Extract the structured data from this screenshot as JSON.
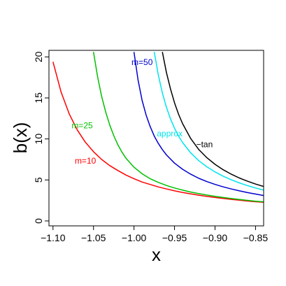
{
  "chart_data": {
    "type": "line",
    "title": "",
    "xlabel": "x",
    "ylabel": "b(x)",
    "xlim": [
      -1.105,
      -0.84
    ],
    "ylim": [
      -0.6,
      20.8
    ],
    "grid": false,
    "legend": "none",
    "x_ticks": [
      -1.1,
      -1.05,
      -1.0,
      -0.95,
      -0.9,
      -0.85
    ],
    "x_tick_labels": [
      "−1.10",
      "−1.05",
      "−1.00",
      "−0.95",
      "−0.90",
      "−0.85"
    ],
    "y_ticks": [
      0,
      5,
      10,
      15,
      20
    ],
    "y_tick_labels": [
      "0",
      "5",
      "10",
      "15",
      "20"
    ],
    "series": [
      {
        "name": "m=10",
        "color": "#ff0000",
        "x": [
          -1.1,
          -1.09,
          -1.08,
          -1.07,
          -1.06,
          -1.05,
          -1.04,
          -1.03,
          -1.02,
          -1.01,
          -1.0,
          -0.99,
          -0.98,
          -0.97,
          -0.96,
          -0.95,
          -0.94,
          -0.93,
          -0.92,
          -0.91,
          -0.9,
          -0.89,
          -0.88,
          -0.87,
          -0.86,
          -0.85,
          -0.84
        ],
        "y": [
          19.4,
          15.7,
          13.05,
          11.1,
          9.6,
          8.45,
          7.5,
          6.75,
          6.15,
          5.6,
          5.15,
          4.75,
          4.45,
          4.15,
          3.9,
          3.67,
          3.47,
          3.3,
          3.14,
          2.99,
          2.86,
          2.74,
          2.63,
          2.53,
          2.43,
          2.34,
          2.27
        ]
      },
      {
        "name": "m=25",
        "color": "#00c000",
        "x": [
          -1.05,
          -1.045,
          -1.04,
          -1.035,
          -1.03,
          -1.025,
          -1.02,
          -1.015,
          -1.01,
          -1.0,
          -0.99,
          -0.98,
          -0.97,
          -0.96,
          -0.95,
          -0.94,
          -0.93,
          -0.92,
          -0.91,
          -0.9,
          -0.89,
          -0.88,
          -0.87,
          -0.86,
          -0.85,
          -0.84
        ],
        "y": [
          20.6,
          17.6,
          15.2,
          13.3,
          11.7,
          10.4,
          9.3,
          8.4,
          7.65,
          6.55,
          5.75,
          5.15,
          4.7,
          4.33,
          4.02,
          3.76,
          3.53,
          3.33,
          3.16,
          3.0,
          2.86,
          2.73,
          2.62,
          2.51,
          2.41,
          2.33
        ]
      },
      {
        "name": "m=50",
        "color": "#0000d0",
        "x": [
          -1.0,
          -0.995,
          -0.99,
          -0.985,
          -0.98,
          -0.975,
          -0.97,
          -0.965,
          -0.96,
          -0.95,
          -0.94,
          -0.93,
          -0.92,
          -0.91,
          -0.9,
          -0.89,
          -0.88,
          -0.87,
          -0.86,
          -0.85,
          -0.84
        ],
        "y": [
          20.6,
          17.2,
          14.7,
          12.9,
          11.5,
          10.35,
          9.45,
          8.7,
          8.05,
          7.05,
          6.3,
          5.7,
          5.2,
          4.8,
          4.46,
          4.16,
          3.9,
          3.67,
          3.46,
          3.28,
          3.1
        ]
      },
      {
        "name": "approx",
        "color": "#00e5ee",
        "x": [
          -0.975,
          -0.97,
          -0.965,
          -0.96,
          -0.955,
          -0.95,
          -0.945,
          -0.94,
          -0.93,
          -0.92,
          -0.91,
          -0.9,
          -0.89,
          -0.88,
          -0.87,
          -0.86,
          -0.85,
          -0.84
        ],
        "y": [
          20.6,
          17.8,
          15.6,
          13.85,
          12.45,
          11.3,
          10.35,
          9.55,
          8.3,
          7.35,
          6.6,
          5.98,
          5.46,
          5.02,
          4.64,
          4.31,
          4.02,
          3.76
        ]
      },
      {
        "name": "−tan",
        "color": "#000000",
        "x": [
          -0.965,
          -0.96,
          -0.955,
          -0.95,
          -0.945,
          -0.94,
          -0.93,
          -0.92,
          -0.91,
          -0.9,
          -0.89,
          -0.88,
          -0.87,
          -0.86,
          -0.85,
          -0.84
        ],
        "y": [
          20.6,
          18.1,
          16.1,
          14.4,
          13.0,
          11.85,
          10.05,
          8.7,
          7.7,
          6.9,
          6.25,
          5.7,
          5.24,
          4.85,
          4.5,
          4.2
        ]
      }
    ],
    "annotations": [
      {
        "text": "m=10",
        "series": "m=10",
        "x": -1.06,
        "y": 7.0,
        "color": "#ff0000"
      },
      {
        "text": "m=25",
        "series": "m=25",
        "x": -1.064,
        "y": 11.3,
        "color": "#00c000"
      },
      {
        "text": "m=50",
        "series": "m=50",
        "x": -0.99,
        "y": 19.0,
        "color": "#0000d0"
      },
      {
        "text": "approx",
        "series": "approx",
        "x": -0.956,
        "y": 10.3,
        "color": "#00e5ee"
      },
      {
        "text": "−tan",
        "series": "−tan",
        "x": -0.913,
        "y": 9.0,
        "color": "#000000"
      }
    ]
  }
}
